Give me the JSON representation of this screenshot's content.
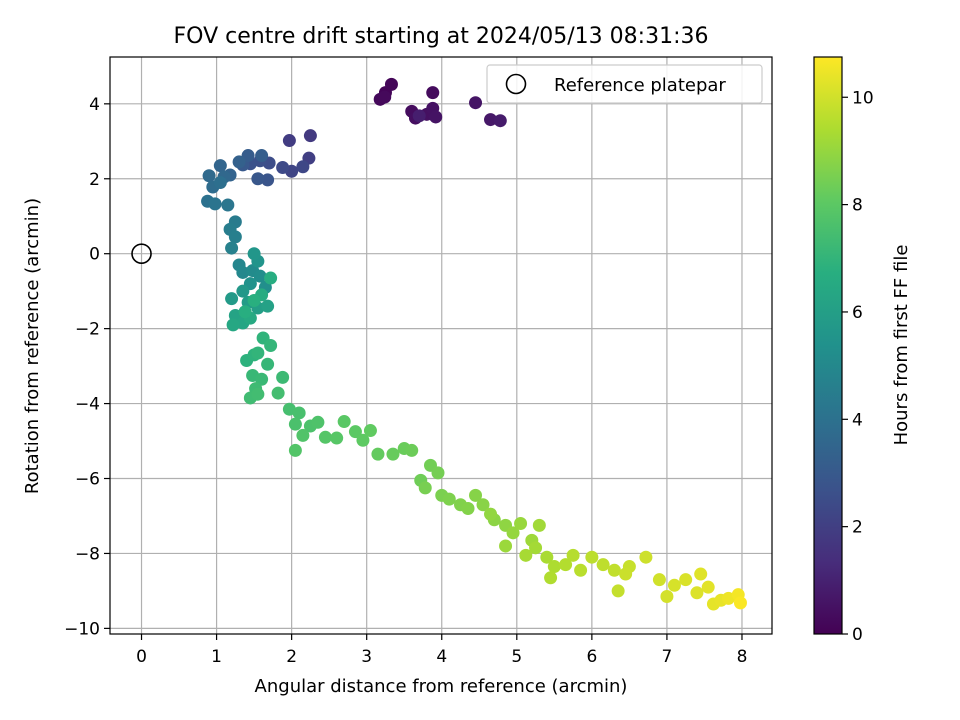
{
  "chart_data": {
    "type": "scatter",
    "title": "FOV centre drift starting at 2024/05/13 08:31:36",
    "xlabel": "Angular distance from reference (arcmin)",
    "ylabel": "Rotation from reference (arcmin)",
    "xlim": [
      -0.42,
      8.4
    ],
    "ylim": [
      -10.15,
      5.25
    ],
    "xticks": [
      0,
      1,
      2,
      3,
      4,
      5,
      6,
      7,
      8
    ],
    "yticks": [
      -10,
      -8,
      -6,
      -4,
      -2,
      0,
      2,
      4
    ],
    "grid": true,
    "legend": {
      "position": "top-right",
      "entries": [
        "Reference platepar"
      ]
    },
    "reference_point": {
      "x": 0,
      "y": 0
    },
    "colorbar": {
      "label": "Hours from first FF file",
      "range": [
        0,
        10.75
      ],
      "ticks": [
        0,
        2,
        4,
        6,
        8,
        10
      ],
      "colormap": "viridis"
    },
    "series": [
      {
        "points": [
          [
            3.25,
            4.3,
            0.1
          ],
          [
            3.33,
            4.52,
            0.15
          ],
          [
            3.18,
            4.12,
            0.2
          ],
          [
            3.24,
            4.18,
            0.25
          ],
          [
            3.88,
            4.3,
            0.3
          ],
          [
            3.6,
            3.8,
            0.35
          ],
          [
            3.65,
            3.62,
            0.4
          ],
          [
            3.8,
            3.72,
            0.45
          ],
          [
            3.88,
            3.88,
            0.5
          ],
          [
            3.92,
            3.65,
            0.55
          ],
          [
            4.45,
            4.03,
            0.6
          ],
          [
            4.65,
            3.58,
            0.7
          ],
          [
            4.78,
            3.55,
            0.8
          ],
          [
            3.7,
            3.68,
            0.9
          ],
          [
            2.25,
            3.15,
            1.8
          ],
          [
            1.97,
            3.02,
            1.9
          ],
          [
            2.23,
            2.55,
            2.0
          ],
          [
            2.0,
            2.2,
            2.2
          ],
          [
            2.15,
            2.32,
            2.3
          ],
          [
            1.88,
            2.3,
            2.4
          ],
          [
            1.7,
            2.42,
            2.5
          ],
          [
            1.58,
            2.48,
            2.6
          ],
          [
            1.45,
            2.4,
            2.7
          ],
          [
            1.68,
            1.97,
            2.8
          ],
          [
            1.55,
            2.0,
            2.9
          ],
          [
            1.35,
            2.37,
            3.0
          ],
          [
            1.42,
            2.62,
            3.1
          ],
          [
            1.6,
            2.62,
            3.2
          ],
          [
            1.3,
            2.45,
            3.3
          ],
          [
            1.18,
            2.1,
            3.4
          ],
          [
            1.05,
            2.35,
            3.5
          ],
          [
            1.1,
            2.05,
            3.6
          ],
          [
            0.9,
            2.08,
            3.7
          ],
          [
            0.95,
            1.78,
            3.8
          ],
          [
            1.05,
            1.9,
            3.9
          ],
          [
            0.88,
            1.4,
            4.0
          ],
          [
            0.98,
            1.33,
            4.1
          ],
          [
            1.15,
            1.3,
            4.2
          ],
          [
            1.25,
            0.85,
            4.4
          ],
          [
            1.18,
            0.65,
            4.5
          ],
          [
            1.25,
            0.45,
            4.6
          ],
          [
            1.2,
            0.15,
            4.7
          ],
          [
            1.3,
            -0.3,
            4.9
          ],
          [
            1.35,
            -0.5,
            5.0
          ],
          [
            1.48,
            -0.45,
            5.1
          ],
          [
            1.58,
            -0.6,
            5.2
          ],
          [
            1.65,
            -0.9,
            5.3
          ],
          [
            1.45,
            -0.8,
            5.4
          ],
          [
            1.55,
            -0.2,
            5.5
          ],
          [
            1.5,
            0.0,
            5.6
          ],
          [
            1.35,
            -1.0,
            5.7
          ],
          [
            1.2,
            -1.2,
            5.8
          ],
          [
            1.42,
            -1.3,
            5.9
          ],
          [
            1.55,
            -1.45,
            6.0
          ],
          [
            1.68,
            -1.4,
            6.1
          ],
          [
            1.25,
            -1.65,
            6.2
          ],
          [
            1.35,
            -1.85,
            6.3
          ],
          [
            1.22,
            -1.9,
            6.4
          ],
          [
            1.45,
            -1.72,
            6.5
          ],
          [
            1.6,
            -1.1,
            6.6
          ],
          [
            1.72,
            -0.65,
            6.65
          ],
          [
            1.38,
            -1.55,
            6.7
          ],
          [
            1.5,
            -1.25,
            6.75
          ],
          [
            1.4,
            -2.85,
            6.85
          ],
          [
            1.5,
            -2.7,
            6.9
          ],
          [
            1.62,
            -2.25,
            6.95
          ],
          [
            1.55,
            -2.65,
            7.0
          ],
          [
            1.72,
            -2.45,
            7.05
          ],
          [
            1.68,
            -2.95,
            7.1
          ],
          [
            1.48,
            -3.25,
            7.15
          ],
          [
            1.6,
            -3.35,
            7.2
          ],
          [
            1.88,
            -3.3,
            7.25
          ],
          [
            1.52,
            -3.6,
            7.3
          ],
          [
            1.45,
            -3.85,
            7.35
          ],
          [
            1.55,
            -3.75,
            7.4
          ],
          [
            1.82,
            -3.72,
            7.45
          ],
          [
            1.97,
            -4.15,
            7.5
          ],
          [
            2.1,
            -4.25,
            7.55
          ],
          [
            2.05,
            -4.55,
            7.6
          ],
          [
            2.25,
            -4.6,
            7.65
          ],
          [
            2.35,
            -4.5,
            7.7
          ],
          [
            2.15,
            -4.85,
            7.75
          ],
          [
            2.05,
            -5.25,
            7.8
          ],
          [
            2.45,
            -4.9,
            7.85
          ],
          [
            2.6,
            -4.92,
            7.9
          ],
          [
            2.7,
            -4.48,
            7.95
          ],
          [
            2.85,
            -4.75,
            8.0
          ],
          [
            2.95,
            -4.98,
            8.05
          ],
          [
            3.05,
            -4.72,
            8.1
          ],
          [
            3.15,
            -5.35,
            8.15
          ],
          [
            3.35,
            -5.35,
            8.2
          ],
          [
            3.5,
            -5.2,
            8.25
          ],
          [
            3.6,
            -5.25,
            8.3
          ],
          [
            3.72,
            -6.05,
            8.35
          ],
          [
            3.85,
            -5.65,
            8.4
          ],
          [
            3.95,
            -5.85,
            8.45
          ],
          [
            3.78,
            -6.25,
            8.5
          ],
          [
            4.0,
            -6.45,
            8.55
          ],
          [
            4.1,
            -6.55,
            8.6
          ],
          [
            4.25,
            -6.7,
            8.65
          ],
          [
            4.35,
            -6.8,
            8.7
          ],
          [
            4.45,
            -6.45,
            8.75
          ],
          [
            4.55,
            -6.7,
            8.8
          ],
          [
            4.7,
            -7.1,
            8.85
          ],
          [
            4.85,
            -7.25,
            8.9
          ],
          [
            4.65,
            -6.95,
            8.95
          ],
          [
            4.95,
            -7.45,
            9.0
          ],
          [
            5.05,
            -7.2,
            9.05
          ],
          [
            4.85,
            -7.8,
            9.1
          ],
          [
            5.2,
            -7.65,
            9.15
          ],
          [
            5.3,
            -7.25,
            9.2
          ],
          [
            5.25,
            -7.85,
            9.25
          ],
          [
            5.12,
            -8.05,
            9.3
          ],
          [
            5.4,
            -8.1,
            9.35
          ],
          [
            5.5,
            -8.35,
            9.4
          ],
          [
            5.45,
            -8.65,
            9.45
          ],
          [
            5.65,
            -8.3,
            9.5
          ],
          [
            5.75,
            -8.05,
            9.55
          ],
          [
            5.85,
            -8.45,
            9.6
          ],
          [
            6.0,
            -8.1,
            9.65
          ],
          [
            6.15,
            -8.3,
            9.7
          ],
          [
            6.3,
            -8.45,
            9.75
          ],
          [
            6.35,
            -9.0,
            9.8
          ],
          [
            6.5,
            -8.35,
            9.85
          ],
          [
            6.45,
            -8.55,
            9.9
          ],
          [
            6.72,
            -8.1,
            9.95
          ],
          [
            6.9,
            -8.7,
            10.0
          ],
          [
            7.0,
            -9.15,
            10.05
          ],
          [
            7.1,
            -8.85,
            10.1
          ],
          [
            7.25,
            -8.7,
            10.15
          ],
          [
            7.4,
            -9.05,
            10.2
          ],
          [
            7.45,
            -8.55,
            10.25
          ],
          [
            7.55,
            -8.9,
            10.3
          ],
          [
            7.62,
            -9.35,
            10.35
          ],
          [
            7.72,
            -9.25,
            10.4
          ],
          [
            7.82,
            -9.2,
            10.5
          ],
          [
            7.95,
            -9.1,
            10.6
          ],
          [
            7.98,
            -9.32,
            10.7
          ]
        ]
      }
    ]
  }
}
